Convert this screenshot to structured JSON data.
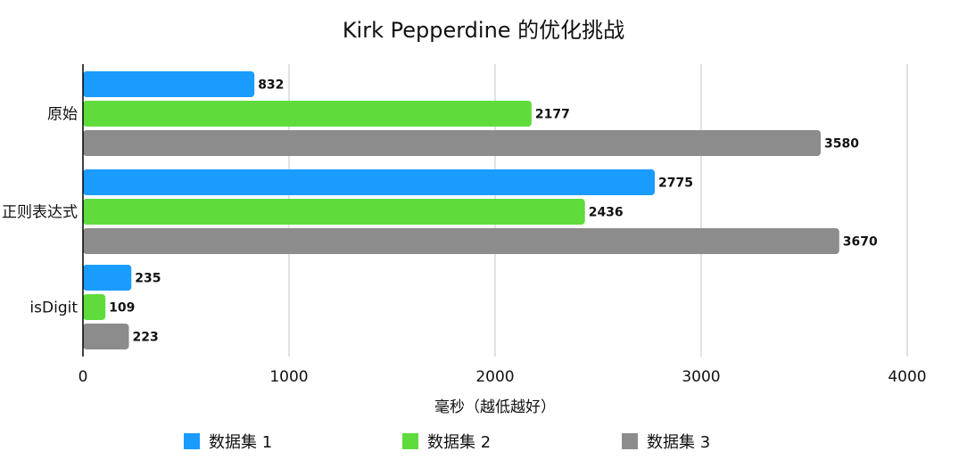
{
  "chart_data": {
    "type": "bar",
    "orientation": "horizontal",
    "title": "Kirk Pepperdine 的优化挑战",
    "xlabel": "毫秒（越低越好）",
    "ylabel": "",
    "xlim": [
      0,
      4000
    ],
    "xticks": [
      0,
      1000,
      2000,
      3000,
      4000
    ],
    "xtick_labels": [
      "0",
      "1000",
      "2000",
      "3000",
      "4000"
    ],
    "grid": true,
    "legend_position": "bottom",
    "categories": [
      "原始",
      "正则表达式",
      "isDigit"
    ],
    "series": [
      {
        "name": "数据集 1",
        "color": "#1a9cff",
        "values": [
          832,
          2775,
          235
        ]
      },
      {
        "name": "数据集 2",
        "color": "#5fdc3c",
        "values": [
          2177,
          2436,
          109
        ]
      },
      {
        "name": "数据集 3",
        "color": "#8c8c8c",
        "values": [
          3580,
          3670,
          223
        ]
      }
    ]
  }
}
